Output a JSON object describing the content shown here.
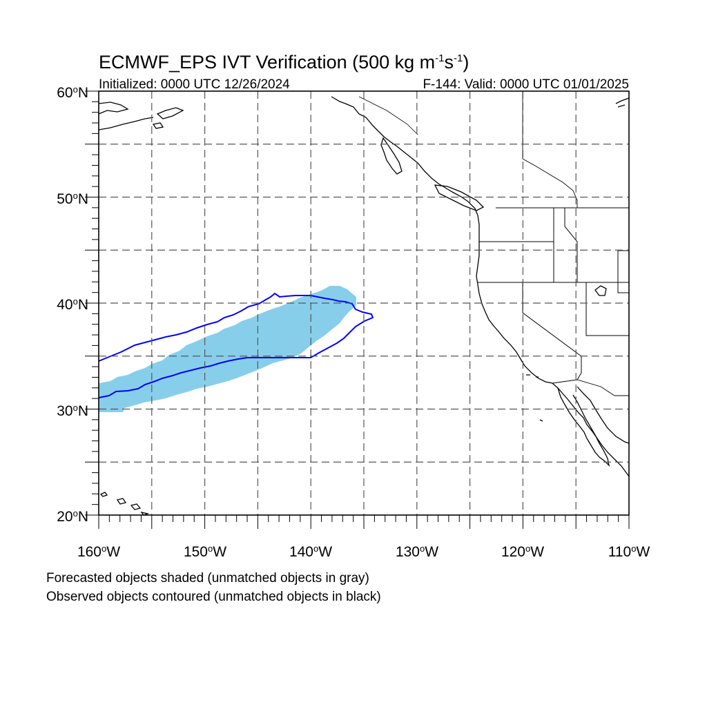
{
  "title": {
    "main": "ECMWF_EPS IVT Verification (500 kg m",
    "sup1": "-1",
    "mid": "s",
    "sup2": "-1",
    "end": ")"
  },
  "initialized": "Initialized: 0000 UTC 12/26/2024",
  "valid": "F-144: Valid: 0000 UTC 01/01/2025",
  "notes": {
    "line1": "Forecasted objects shaded (unmatched objects in gray)",
    "line2": "Observed objects contoured (unmatched objects in black)"
  },
  "colors": {
    "forecast_fill": "#87ceeb",
    "observed_contour": "#0000ff",
    "coast": "#000000",
    "grid": "#555555"
  },
  "map_extent": {
    "lon": [
      -160,
      -110
    ],
    "lat": [
      20,
      60
    ]
  },
  "lat_labels": [
    {
      "deg": "60",
      "suffix": "N"
    },
    {
      "deg": "50",
      "suffix": "N"
    },
    {
      "deg": "40",
      "suffix": "N"
    },
    {
      "deg": "30",
      "suffix": "N"
    },
    {
      "deg": "20",
      "suffix": "N"
    }
  ],
  "lon_labels": [
    {
      "deg": "160",
      "suffix": "W"
    },
    {
      "deg": "150",
      "suffix": "W"
    },
    {
      "deg": "140",
      "suffix": "W"
    },
    {
      "deg": "130",
      "suffix": "W"
    },
    {
      "deg": "120",
      "suffix": "W"
    },
    {
      "deg": "110",
      "suffix": "W"
    }
  ]
}
